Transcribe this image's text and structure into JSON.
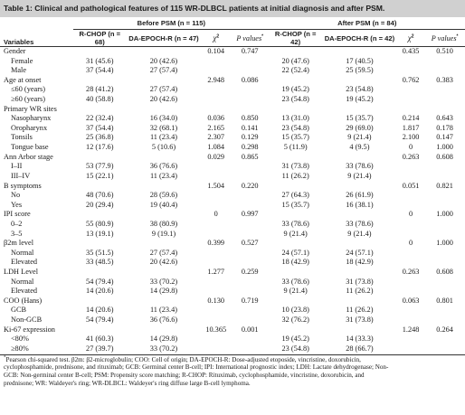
{
  "caption": "Table 1: Clinical and pathological features of 115 WR-DLBCL patients at initial diagnosis and after PSM.",
  "groups": {
    "before": "Before PSM (n = 115)",
    "after": "After PSM (n = 84)"
  },
  "columns": {
    "variables": "Variables",
    "rchop_before": "R-CHOP (n = 68)",
    "da_before": "DA-EPOCH-R (n = 47)",
    "chi": "χ",
    "chi_sup": "2",
    "p": "P values",
    "p_sup": "*",
    "rchop_after": "R-CHOP (n = 42)",
    "da_after": "DA-EPOCH-R (n = 42)"
  },
  "rows": [
    {
      "label": "Gender",
      "sub": false,
      "cells": [
        "",
        "",
        "0.104",
        "0.747",
        "",
        "",
        "0.435",
        "0.510"
      ]
    },
    {
      "label": "Female",
      "sub": true,
      "cells": [
        "31 (45.6)",
        "20 (42.6)",
        "",
        "",
        "20 (47.6)",
        "17 (40.5)",
        "",
        ""
      ]
    },
    {
      "label": "Male",
      "sub": true,
      "cells": [
        "37 (54.4)",
        "27 (57.4)",
        "",
        "",
        "22 (52.4)",
        "25 (59.5)",
        "",
        ""
      ]
    },
    {
      "label": "Age at onset",
      "sub": false,
      "cells": [
        "",
        "",
        "2.948",
        "0.086",
        "",
        "",
        "0.762",
        "0.383"
      ]
    },
    {
      "label": "≤60 (years)",
      "sub": true,
      "cells": [
        "28 (41.2)",
        "27 (57.4)",
        "",
        "",
        "19 (45.2)",
        "23 (54.8)",
        "",
        ""
      ]
    },
    {
      "label": "≥60 (years)",
      "sub": true,
      "cells": [
        "40 (58.8)",
        "20 (42.6)",
        "",
        "",
        "23 (54.8)",
        "19 (45.2)",
        "",
        ""
      ]
    },
    {
      "label": "Primary WR sites",
      "sub": false,
      "cells": [
        "",
        "",
        "",
        "",
        "",
        "",
        "",
        ""
      ]
    },
    {
      "label": "Nasopharynx",
      "sub": true,
      "cells": [
        "22 (32.4)",
        "16 (34.0)",
        "0.036",
        "0.850",
        "13 (31.0)",
        "15 (35.7)",
        "0.214",
        "0.643"
      ]
    },
    {
      "label": "Oropharynx",
      "sub": true,
      "cells": [
        "37 (54.4)",
        "32 (68.1)",
        "2.165",
        "0.141",
        "23 (54.8)",
        "29 (69.0)",
        "1.817",
        "0.178"
      ]
    },
    {
      "label": "Tonsils",
      "sub": true,
      "cells": [
        "25 (36.8)",
        "11 (23.4)",
        "2.307",
        "0.129",
        "15 (35.7)",
        "9 (21.4)",
        "2.100",
        "0.147"
      ]
    },
    {
      "label": "Tongue base",
      "sub": true,
      "cells": [
        "12 (17.6)",
        "5 (10.6)",
        "1.084",
        "0.298",
        "5 (11.9)",
        "4 (9.5)",
        "0",
        "1.000"
      ]
    },
    {
      "label": "Ann Arbor stage",
      "sub": false,
      "cells": [
        "",
        "",
        "0.029",
        "0.865",
        "",
        "",
        "0.263",
        "0.608"
      ]
    },
    {
      "label": "I–II",
      "sub": true,
      "cells": [
        "53 (77.9)",
        "36 (76.6)",
        "",
        "",
        "31 (73.8)",
        "33 (78.6)",
        "",
        ""
      ]
    },
    {
      "label": "III–IV",
      "sub": true,
      "cells": [
        "15 (22.1)",
        "11 (23.4)",
        "",
        "",
        "11 (26.2)",
        "9 (21.4)",
        "",
        ""
      ]
    },
    {
      "label": "B symptoms",
      "sub": false,
      "cells": [
        "",
        "",
        "1.504",
        "0.220",
        "",
        "",
        "0.051",
        "0.821"
      ]
    },
    {
      "label": "No",
      "sub": true,
      "cells": [
        "48 (70.6)",
        "28 (59.6)",
        "",
        "",
        "27 (64.3)",
        "26 (61.9)",
        "",
        ""
      ]
    },
    {
      "label": "Yes",
      "sub": true,
      "cells": [
        "20 (29.4)",
        "19 (40.4)",
        "",
        "",
        "15 (35.7)",
        "16 (38.1)",
        "",
        ""
      ]
    },
    {
      "label": "IPI score",
      "sub": false,
      "cells": [
        "",
        "",
        "0",
        "0.997",
        "",
        "",
        "0",
        "1.000"
      ]
    },
    {
      "label": "0–2",
      "sub": true,
      "cells": [
        "55 (80.9)",
        "38 (80.9)",
        "",
        "",
        "33 (78.6)",
        "33 (78.6)",
        "",
        ""
      ]
    },
    {
      "label": "3–5",
      "sub": true,
      "cells": [
        "13 (19.1)",
        "9 (19.1)",
        "",
        "",
        "9 (21.4)",
        "9 (21.4)",
        "",
        ""
      ]
    },
    {
      "label": "β2m level",
      "sub": false,
      "cells": [
        "",
        "",
        "0.399",
        "0.527",
        "",
        "",
        "0",
        "1.000"
      ]
    },
    {
      "label": "Normal",
      "sub": true,
      "cells": [
        "35 (51.5)",
        "27 (57.4)",
        "",
        "",
        "24 (57.1)",
        "24 (57.1)",
        "",
        ""
      ]
    },
    {
      "label": "Elevated",
      "sub": true,
      "cells": [
        "33 (48.5)",
        "20 (42.6)",
        "",
        "",
        "18 (42.9)",
        "18 (42.9)",
        "",
        ""
      ]
    },
    {
      "label": "LDH Level",
      "sub": false,
      "cells": [
        "",
        "",
        "1.277",
        "0.259",
        "",
        "",
        "0.263",
        "0.608"
      ]
    },
    {
      "label": "Normal",
      "sub": true,
      "cells": [
        "54 (79.4)",
        "33 (70.2)",
        "",
        "",
        "33 (78.6)",
        "31 (73.8)",
        "",
        ""
      ]
    },
    {
      "label": "Elevated",
      "sub": true,
      "cells": [
        "14 (20.6)",
        "14 (29.8)",
        "",
        "",
        "9 (21.4)",
        "11 (26.2)",
        "",
        ""
      ]
    },
    {
      "label": "COO (Hans)",
      "sub": false,
      "cells": [
        "",
        "",
        "0.130",
        "0.719",
        "",
        "",
        "0.063",
        "0.801"
      ]
    },
    {
      "label": "GCB",
      "sub": true,
      "cells": [
        "14 (20.6)",
        "11 (23.4)",
        "",
        "",
        "10 (23.8)",
        "11 (26.2)",
        "",
        ""
      ]
    },
    {
      "label": "Non-GCB",
      "sub": true,
      "cells": [
        "54 (79.4)",
        "36 (76.6)",
        "",
        "",
        "32 (76.2)",
        "31 (73.8)",
        "",
        ""
      ]
    },
    {
      "label": "Ki-67 expression",
      "sub": false,
      "cells": [
        "",
        "",
        "10.365",
        "0.001",
        "",
        "",
        "1.248",
        "0.264"
      ]
    },
    {
      "label": "<80%",
      "sub": true,
      "cells": [
        "41 (60.3)",
        "14 (29.8)",
        "",
        "",
        "19 (45.2)",
        "14 (33.3)",
        "",
        ""
      ]
    },
    {
      "label": "≥80%",
      "sub": true,
      "cells": [
        "27 (39.7)",
        "33 (70.2)",
        "",
        "",
        "23 (54.8)",
        "28 (66.7)",
        "",
        ""
      ]
    }
  ],
  "footnote": {
    "mark": "*",
    "line1": "Pearson chi-squared test. β2m: β2-microglobulin; COO: Cell of origin; DA-EPOCH-R: Dose-adjusted etoposide, vincristine, doxorubicin,",
    "line2": "cyclophosphamide, prednisone, and rituximab; GCB: Germinal center B-cell; IPI: International prognostic index; LDH: Lactate dehydrogenase; Non-",
    "line3": "GCB: Non-germinal center B-cell; PSM: Propensity score matching; R-CHOP: Rituximab, cyclophosphamide, vincristine, doxorubicin, and",
    "line4": "prednisone; WR: Waldeyer's ring; WR-DLBCL: Waldeyer's ring diffuse large B-cell lymphoma."
  }
}
